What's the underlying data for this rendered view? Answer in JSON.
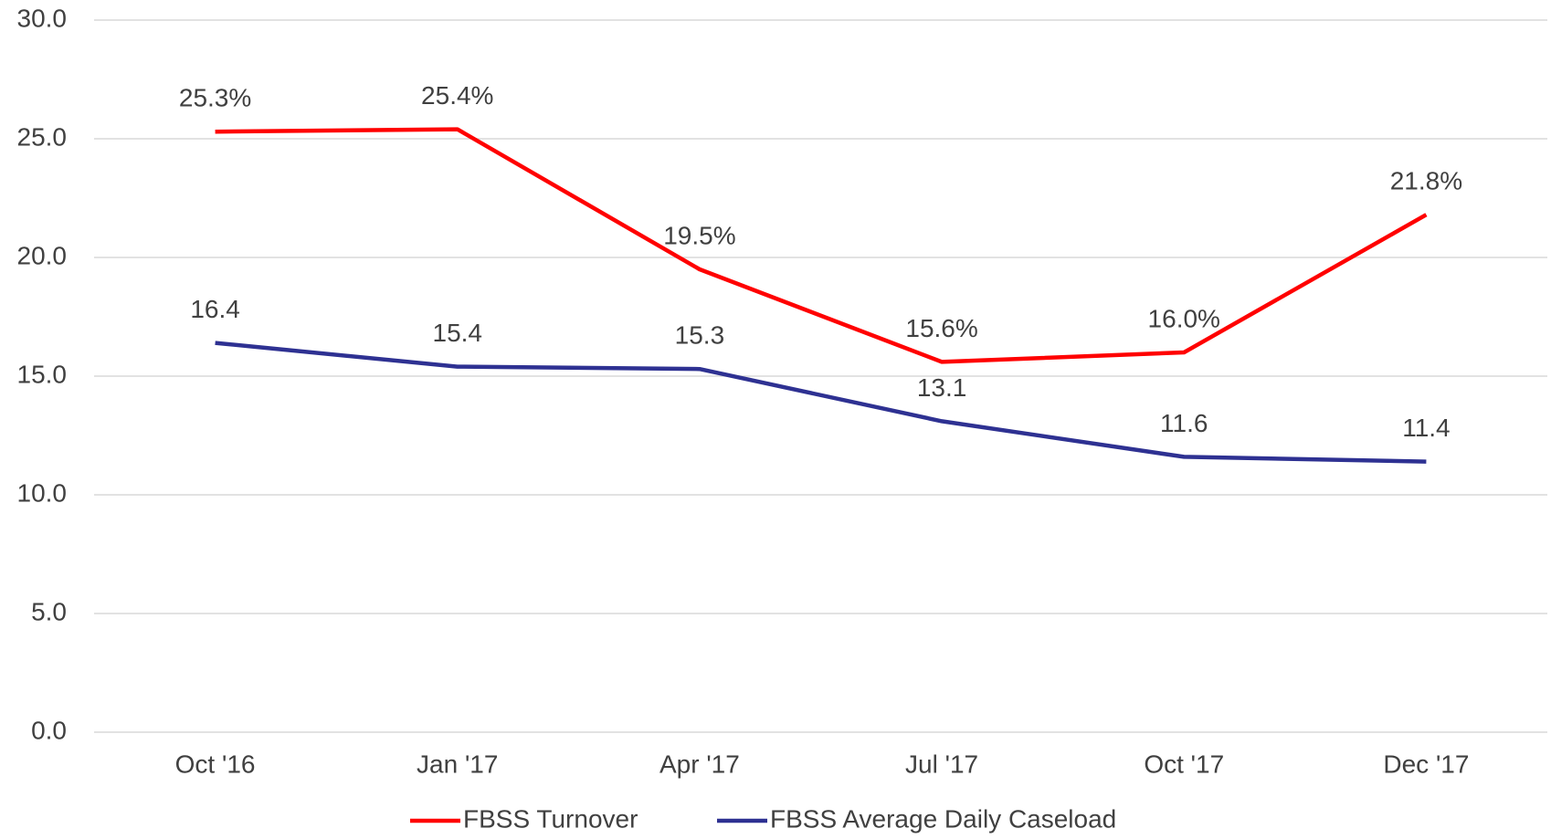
{
  "chart_data": {
    "type": "line",
    "categories": [
      "Oct '16",
      "Jan '17",
      "Apr '17",
      "Jul '17",
      "Oct '17",
      "Dec '17"
    ],
    "series": [
      {
        "name": "FBSS Turnover",
        "color": "#ff0000",
        "values": [
          25.3,
          25.4,
          19.5,
          15.6,
          16.0,
          21.8
        ],
        "value_labels": [
          "25.3%",
          "25.4%",
          "19.5%",
          "15.6%",
          "16.0%",
          "21.8%"
        ]
      },
      {
        "name": "FBSS Average Daily Caseload",
        "color": "#2e3192",
        "values": [
          16.4,
          15.4,
          15.3,
          13.1,
          11.6,
          11.4
        ]
      }
    ],
    "ylim": [
      0,
      30
    ],
    "yticks": [
      {
        "value": 0,
        "label": "0.0"
      },
      {
        "value": 5,
        "label": "5.0"
      },
      {
        "value": 10,
        "label": "10.0"
      },
      {
        "value": 15,
        "label": "15.0"
      },
      {
        "value": 20,
        "label": "20.0"
      },
      {
        "value": 25,
        "label": "25.0"
      },
      {
        "value": 30,
        "label": "30.0"
      }
    ],
    "grid": true,
    "legend": "bottom"
  }
}
